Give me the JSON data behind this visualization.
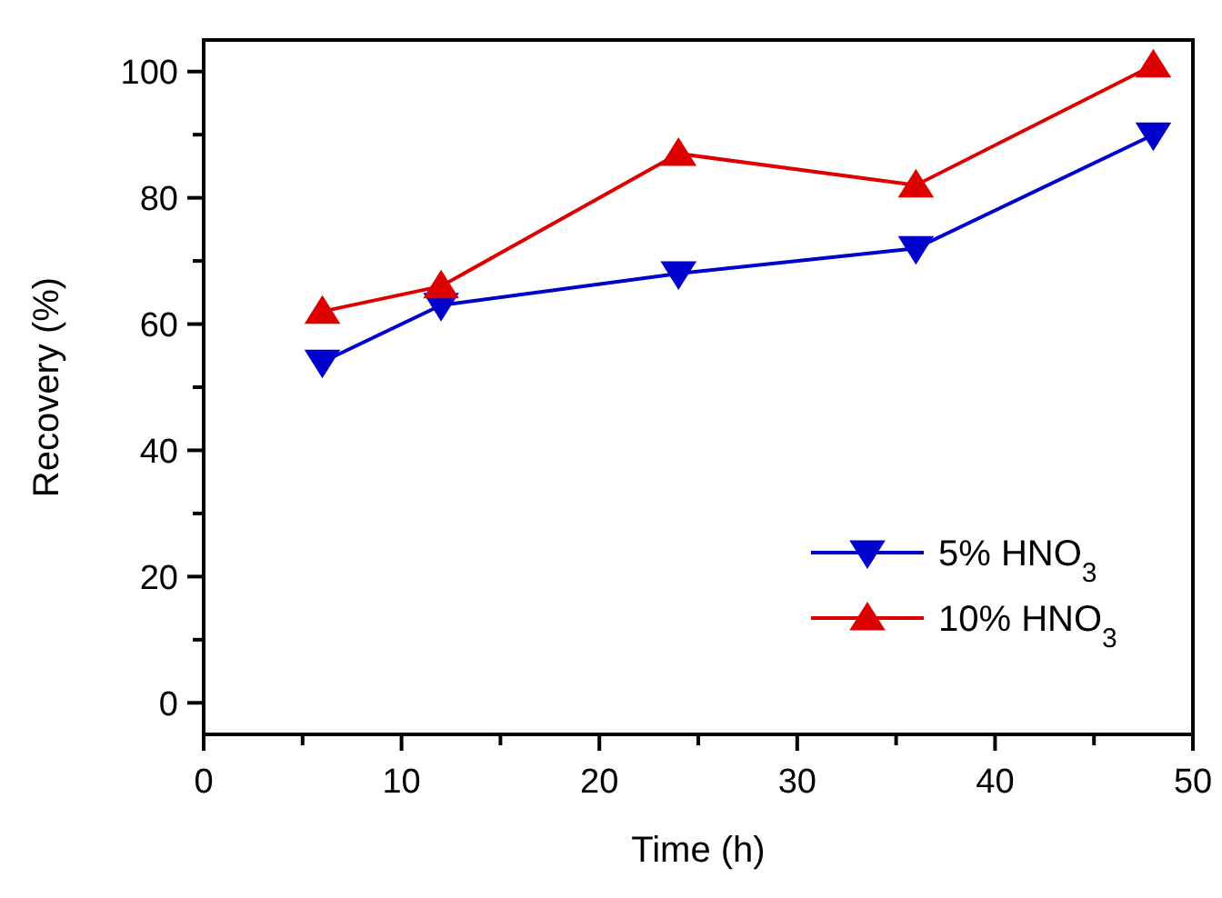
{
  "chart_data": {
    "type": "line",
    "xlabel": "Time (h)",
    "ylabel": "Recovery (%)",
    "x": [
      6,
      12,
      24,
      36,
      48
    ],
    "series": [
      {
        "name": "5% HNO$_{3}$",
        "color": "#0000cc",
        "marker": "triangle-down",
        "values": [
          54,
          63,
          68,
          72,
          90
        ]
      },
      {
        "name": "10% HNO$_{3}$",
        "color": "#dd0000",
        "marker": "triangle",
        "values": [
          62,
          66,
          87,
          82,
          101
        ]
      }
    ],
    "xlim": [
      0,
      50
    ],
    "xticks": [
      0,
      {
        "value": 5,
        "label": null
      },
      10,
      {
        "value": 15,
        "label": null
      },
      20,
      {
        "value": 25,
        "label": null
      },
      30,
      {
        "value": 35,
        "label": null
      },
      40,
      {
        "value": 45,
        "label": null
      },
      50
    ],
    "ylim": [
      -5,
      105
    ],
    "yticks": [
      0,
      {
        "value": 10,
        "label": null
      },
      20,
      {
        "value": 30,
        "label": null
      },
      40,
      {
        "value": 50,
        "label": null
      },
      60,
      {
        "value": 70,
        "label": null
      },
      80,
      {
        "value": 90,
        "label": null
      },
      100
    ],
    "legend": "bottom right",
    "grid": false,
    "line_style": "solid"
  }
}
